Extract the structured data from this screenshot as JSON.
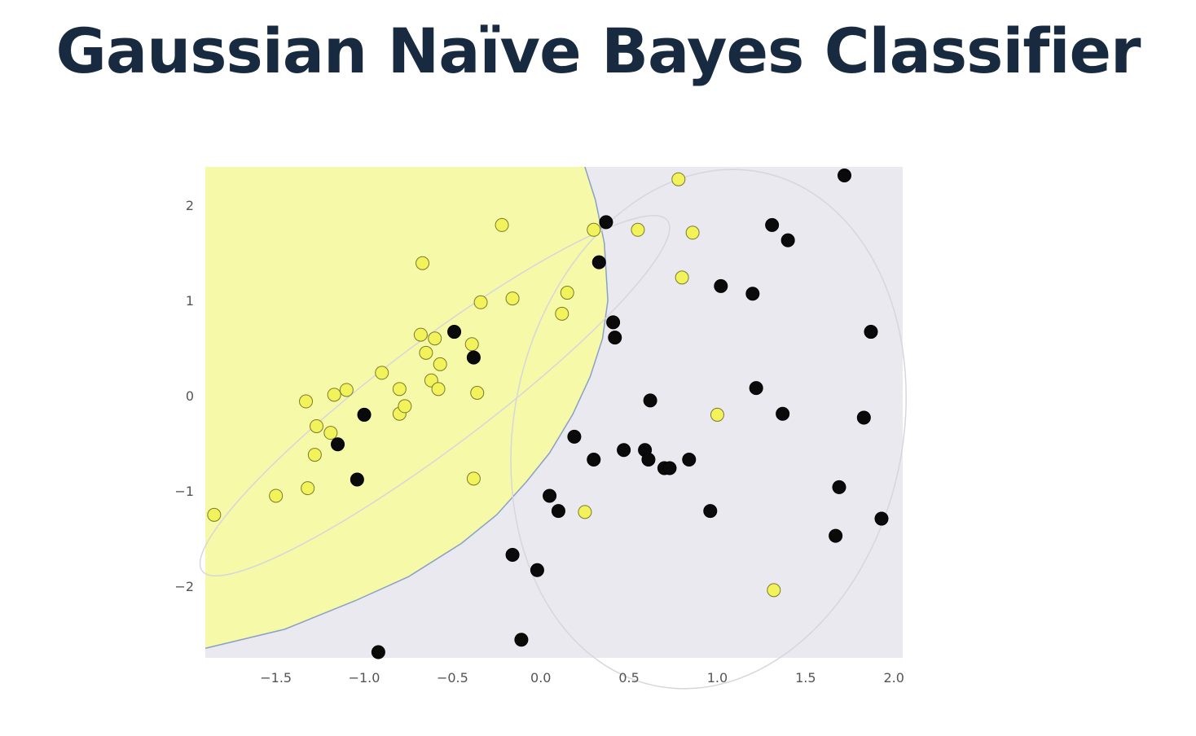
{
  "slide": {
    "title": "Gaussian Naïve Bayes Classifier"
  },
  "colors": {
    "title": "#172a3f",
    "region_class1": "#f6f9a8",
    "region_class0": "#e9e9ef",
    "boundary": "#8aa0c8",
    "point_class1": "#f2f25a",
    "point_class0": "#0a0a0a",
    "ellipse": "#d6d6dc"
  },
  "chart_data": {
    "type": "scatter",
    "title": "",
    "xlabel": "",
    "ylabel": "",
    "xlim": [
      -1.9,
      2.05
    ],
    "ylim": [
      -2.75,
      2.4
    ],
    "xticks": [
      "−1.5",
      "−1.0",
      "−0.5",
      "0.0",
      "0.5",
      "1.0",
      "1.5",
      "2.0"
    ],
    "xtick_values": [
      -1.5,
      -1.0,
      -0.5,
      0.0,
      0.5,
      1.0,
      1.5,
      2.0
    ],
    "yticks": [
      "2",
      "1",
      "0",
      "−1",
      "−2"
    ],
    "ytick_values": [
      2,
      1,
      0,
      -1,
      -2
    ],
    "grid": false,
    "decision_boundary": [
      [
        0.25,
        2.4
      ],
      [
        0.31,
        2.05
      ],
      [
        0.36,
        1.6
      ],
      [
        0.38,
        1.0
      ],
      [
        0.35,
        0.6
      ],
      [
        0.28,
        0.2
      ],
      [
        0.18,
        -0.2
      ],
      [
        0.05,
        -0.6
      ],
      [
        -0.08,
        -0.9
      ],
      [
        -0.25,
        -1.25
      ],
      [
        -0.45,
        -1.55
      ],
      [
        -0.75,
        -1.9
      ],
      [
        -1.05,
        -2.15
      ],
      [
        -1.45,
        -2.45
      ],
      [
        -1.9,
        -2.65
      ]
    ],
    "class_ellipses": [
      {
        "class": 1,
        "center": [
          -0.6,
          0.0
        ],
        "rx": 1.65,
        "ry": 0.55,
        "angle_deg": 37
      },
      {
        "class": 0,
        "center": [
          0.95,
          -0.35
        ],
        "rx": 1.1,
        "ry": 2.75,
        "angle_deg": -12
      }
    ],
    "series": [
      {
        "class": 1,
        "points": [
          [
            -1.85,
            -1.25
          ],
          [
            -1.5,
            -1.05
          ],
          [
            -1.32,
            -0.97
          ],
          [
            -1.33,
            -0.06
          ],
          [
            -1.27,
            -0.32
          ],
          [
            -1.28,
            -0.62
          ],
          [
            -1.19,
            -0.39
          ],
          [
            -1.17,
            0.01
          ],
          [
            -1.1,
            0.06
          ],
          [
            -0.9,
            0.24
          ],
          [
            -0.8,
            0.07
          ],
          [
            -0.8,
            -0.19
          ],
          [
            -0.77,
            -0.11
          ],
          [
            -0.68,
            0.64
          ],
          [
            -0.65,
            0.45
          ],
          [
            -0.62,
            0.16
          ],
          [
            -0.6,
            0.6
          ],
          [
            -0.58,
            0.07
          ],
          [
            -0.57,
            0.33
          ],
          [
            -0.39,
            0.54
          ],
          [
            -0.38,
            -0.87
          ],
          [
            -0.36,
            0.03
          ],
          [
            -0.34,
            0.98
          ],
          [
            -0.16,
            1.02
          ],
          [
            -0.22,
            1.79
          ],
          [
            -0.67,
            1.39
          ],
          [
            0.12,
            0.86
          ],
          [
            0.15,
            1.08
          ],
          [
            0.3,
            1.74
          ],
          [
            0.55,
            1.74
          ],
          [
            0.78,
            2.27
          ],
          [
            0.8,
            1.24
          ],
          [
            0.86,
            1.71
          ],
          [
            1.0,
            -0.2
          ],
          [
            0.25,
            -1.22
          ],
          [
            1.32,
            -2.04
          ]
        ]
      },
      {
        "class": 0,
        "points": [
          [
            -1.15,
            -0.51
          ],
          [
            -1.0,
            -0.2
          ],
          [
            -1.04,
            -0.88
          ],
          [
            -0.49,
            0.67
          ],
          [
            -0.38,
            0.4
          ],
          [
            -0.92,
            -2.69
          ],
          [
            -0.11,
            -2.56
          ],
          [
            -0.16,
            -1.67
          ],
          [
            -0.02,
            -1.83
          ],
          [
            0.05,
            -1.05
          ],
          [
            0.1,
            -1.21
          ],
          [
            0.19,
            -0.43
          ],
          [
            0.3,
            -0.67
          ],
          [
            0.33,
            1.4
          ],
          [
            0.37,
            1.82
          ],
          [
            0.41,
            0.77
          ],
          [
            0.42,
            0.61
          ],
          [
            0.47,
            -0.57
          ],
          [
            0.59,
            -0.57
          ],
          [
            0.61,
            -0.67
          ],
          [
            0.62,
            -0.05
          ],
          [
            0.7,
            -0.76
          ],
          [
            0.73,
            -0.76
          ],
          [
            0.84,
            -0.67
          ],
          [
            0.96,
            -1.21
          ],
          [
            1.02,
            1.15
          ],
          [
            1.2,
            1.07
          ],
          [
            1.22,
            0.08
          ],
          [
            1.31,
            1.79
          ],
          [
            1.37,
            -0.19
          ],
          [
            1.4,
            1.63
          ],
          [
            1.67,
            -1.47
          ],
          [
            1.69,
            -0.96
          ],
          [
            1.72,
            2.31
          ],
          [
            1.83,
            -0.23
          ],
          [
            1.87,
            0.67
          ],
          [
            1.93,
            -1.29
          ]
        ]
      }
    ]
  }
}
